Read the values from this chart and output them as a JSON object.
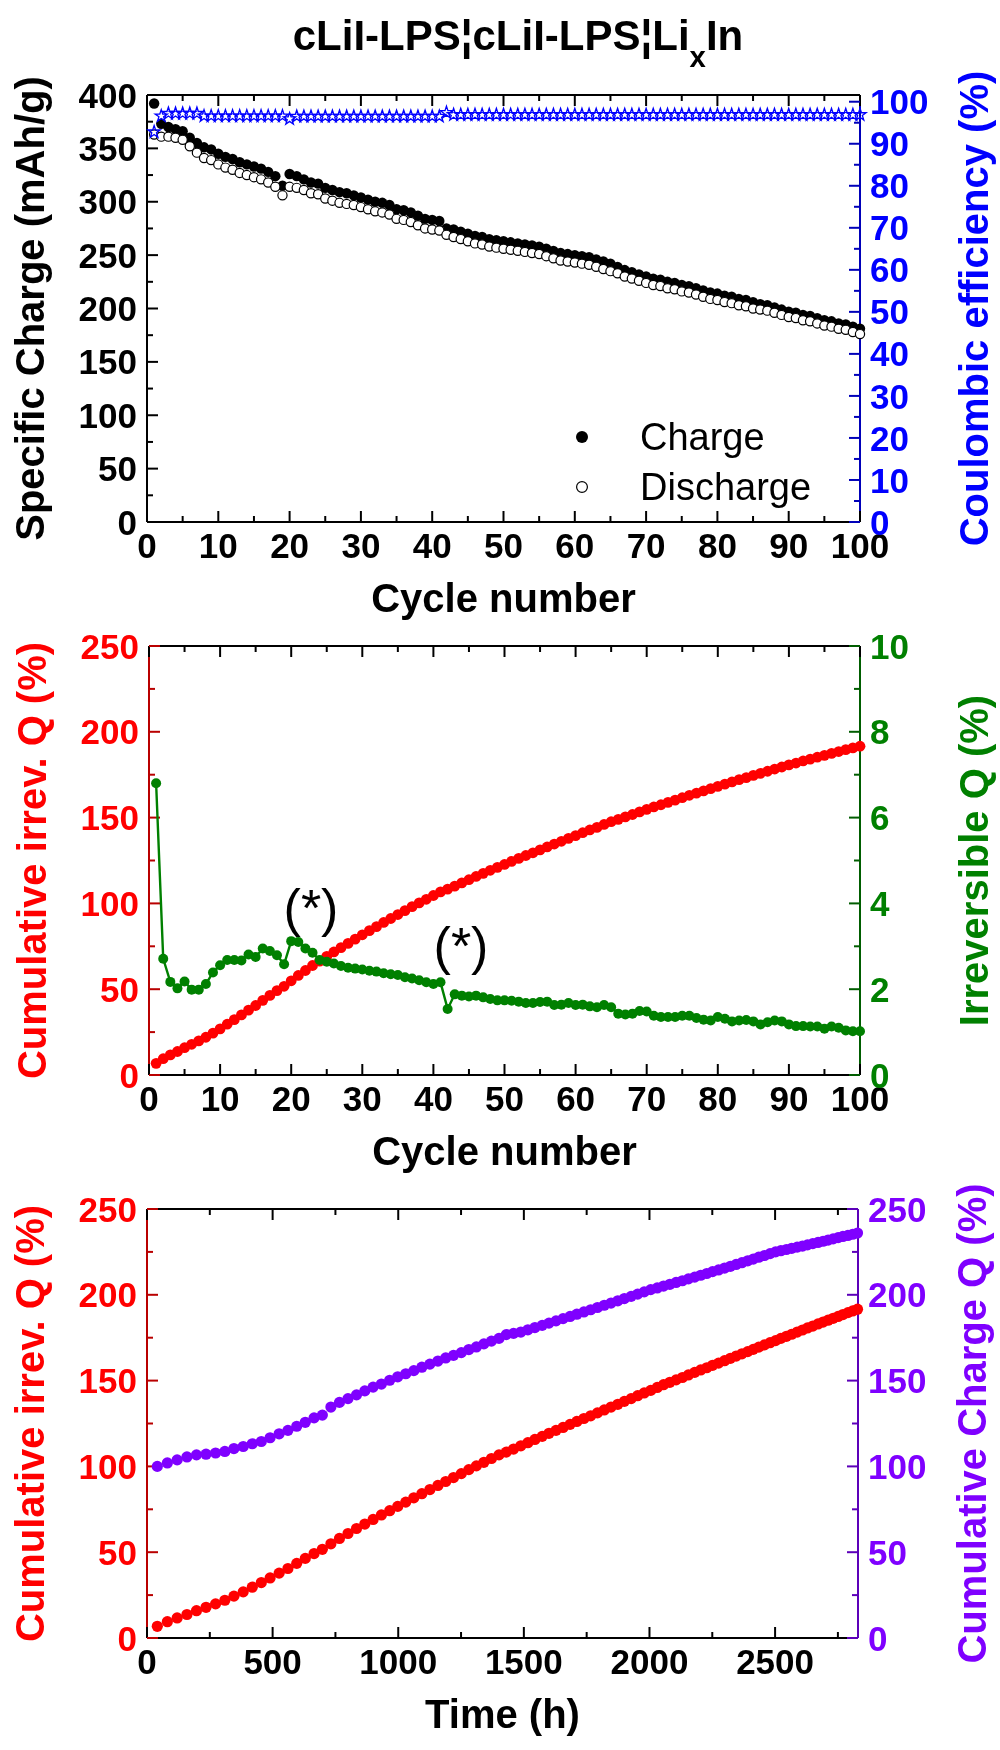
{
  "chart_data": [
    {
      "type": "scatter",
      "title": "cLiI-LPS¦cLiI-LPS¦Li$_{x}$In",
      "xlabel": "Cycle number",
      "ylabel": "Specific Charge (mAh/g)",
      "y2label": "Coulombic efficiency (%)",
      "x": [
        1,
        2,
        3,
        4,
        5,
        6,
        7,
        8,
        9,
        10,
        11,
        12,
        13,
        14,
        15,
        16,
        17,
        18,
        19,
        20,
        21,
        22,
        23,
        24,
        25,
        26,
        27,
        28,
        29,
        30,
        31,
        32,
        33,
        34,
        35,
        36,
        37,
        38,
        39,
        40,
        41,
        42,
        43,
        44,
        45,
        46,
        47,
        48,
        49,
        50,
        51,
        52,
        53,
        54,
        55,
        56,
        57,
        58,
        59,
        60,
        61,
        62,
        63,
        64,
        65,
        66,
        67,
        68,
        69,
        70,
        71,
        72,
        73,
        74,
        75,
        76,
        77,
        78,
        79,
        80,
        81,
        82,
        83,
        84,
        85,
        86,
        87,
        88,
        89,
        90,
        91,
        92,
        93,
        94,
        95,
        96,
        97,
        98,
        99,
        100
      ],
      "xlim": [
        0,
        100
      ],
      "xticks": [
        0,
        {
          "value": 5,
          "label": null
        },
        10,
        {
          "value": 15,
          "label": null
        },
        20,
        {
          "value": 25,
          "label": null
        },
        30,
        {
          "value": 35,
          "label": null
        },
        40,
        {
          "value": 45,
          "label": null
        },
        50,
        {
          "value": 55,
          "label": null
        },
        60,
        {
          "value": 65,
          "label": null
        },
        70,
        {
          "value": 75,
          "label": null
        },
        80,
        {
          "value": 85,
          "label": null
        },
        90,
        {
          "value": 95,
          "label": null
        },
        100
      ],
      "ylim": [
        0,
        400
      ],
      "yticks": [
        0,
        {
          "value": 25,
          "label": null
        },
        50,
        {
          "value": 75,
          "label": null
        },
        100,
        {
          "value": 125,
          "label": null
        },
        150,
        {
          "value": 175,
          "label": null
        },
        200,
        {
          "value": 225,
          "label": null
        },
        250,
        {
          "value": 275,
          "label": null
        },
        300,
        {
          "value": 325,
          "label": null
        },
        350,
        {
          "value": 375,
          "label": null
        },
        400
      ],
      "y2lim": [
        0,
        101.6
      ],
      "y2ticks": [
        0,
        {
          "value": 5,
          "label": null
        },
        10,
        {
          "value": 15,
          "label": null
        },
        20,
        {
          "value": 25,
          "label": null
        },
        30,
        {
          "value": 35,
          "label": null
        },
        40,
        {
          "value": 45,
          "label": null
        },
        50,
        {
          "value": 55,
          "label": null
        },
        60,
        {
          "value": 65,
          "label": null
        },
        70,
        {
          "value": 75,
          "label": null
        },
        80,
        {
          "value": 85,
          "label": null
        },
        90,
        {
          "value": 95,
          "label": null
        },
        100
      ],
      "legend": "bottom right",
      "series": [
        {
          "name": "Charge",
          "color": "#000000",
          "marker": "circle",
          "values": [
            392,
            373,
            370,
            368,
            366,
            360,
            355,
            351,
            349,
            345,
            342,
            340,
            337,
            335,
            333,
            331,
            328,
            324,
            315,
            326,
            324,
            321,
            318,
            317,
            313,
            311,
            309,
            308,
            306,
            304,
            302,
            300,
            299,
            297,
            293,
            292,
            290,
            287,
            284,
            283,
            282,
            275,
            274,
            272,
            270,
            268,
            267,
            265,
            264,
            263,
            262,
            261,
            260,
            259,
            258,
            256,
            254,
            252,
            251,
            250,
            249,
            248,
            246,
            244,
            242,
            239,
            236,
            234,
            232,
            230,
            228,
            227,
            225,
            224,
            222,
            221,
            219,
            217,
            215,
            214,
            212,
            211,
            209,
            208,
            206,
            204,
            203,
            201,
            199,
            197,
            196,
            194,
            193,
            191,
            189,
            188,
            186,
            185,
            183,
            181
          ]
        },
        {
          "name": "Discharge",
          "color": "#000000",
          "marker": "circle",
          "values": [
            363,
            361,
            361,
            360,
            358,
            352,
            346,
            341,
            339,
            335,
            332,
            330,
            327,
            325,
            323,
            321,
            318,
            314,
            306,
            314,
            313,
            311,
            308,
            307,
            303,
            301,
            299,
            298,
            297,
            295,
            293,
            291,
            290,
            288,
            284,
            283,
            281,
            278,
            275,
            274,
            273,
            269,
            267,
            265,
            263,
            261,
            260,
            258,
            257,
            256,
            255,
            254,
            253,
            252,
            251,
            249,
            247,
            245,
            244,
            243,
            242,
            241,
            239,
            237,
            235,
            233,
            230,
            228,
            226,
            224,
            222,
            221,
            219,
            218,
            216,
            215,
            213,
            211,
            209,
            208,
            206,
            205,
            203,
            202,
            200,
            199,
            198,
            196,
            194,
            192,
            191,
            189,
            188,
            186,
            184,
            183,
            181,
            180,
            178,
            176
          ]
        },
        {
          "color": "#0000ff",
          "marker": "star",
          "axis": "y2",
          "values": [
            92.8,
            96.6,
            97.2,
            97.2,
            97.2,
            97.2,
            97.2,
            96.6,
            96.6,
            96.6,
            96.6,
            96.6,
            96.6,
            96.6,
            96.6,
            96.6,
            96.6,
            96.6,
            96.6,
            95.9,
            96.5,
            96.5,
            96.5,
            96.5,
            96.5,
            96.5,
            96.5,
            96.5,
            96.5,
            96.5,
            96.5,
            96.5,
            96.5,
            96.5,
            96.5,
            96.5,
            96.5,
            96.5,
            96.5,
            96.5,
            96.5,
            97.4,
            96.9,
            96.9,
            96.9,
            96.9,
            96.9,
            96.9,
            96.9,
            96.9,
            96.9,
            96.9,
            96.9,
            96.9,
            96.9,
            96.9,
            96.9,
            96.9,
            96.9,
            96.9,
            96.9,
            96.9,
            96.9,
            96.9,
            96.9,
            96.9,
            96.9,
            96.9,
            96.9,
            96.9,
            96.9,
            96.9,
            96.9,
            96.9,
            96.9,
            96.9,
            96.9,
            96.9,
            96.9,
            96.9,
            96.9,
            96.9,
            96.9,
            96.9,
            96.9,
            96.9,
            96.9,
            96.9,
            96.9,
            96.9,
            96.9,
            96.9,
            96.9,
            96.9,
            96.9,
            96.9,
            96.9,
            96.9,
            96.9,
            96.9
          ]
        }
      ]
    },
    {
      "type": "scatter",
      "xlabel": "Cycle number",
      "ylabel": "Cumulative irrev. Q (%)",
      "y2label": "Irreversible Q (%)",
      "x": [
        1,
        2,
        3,
        4,
        5,
        6,
        7,
        8,
        9,
        10,
        11,
        12,
        13,
        14,
        15,
        16,
        17,
        18,
        19,
        20,
        21,
        22,
        23,
        24,
        25,
        26,
        27,
        28,
        29,
        30,
        31,
        32,
        33,
        34,
        35,
        36,
        37,
        38,
        39,
        40,
        41,
        42,
        43,
        44,
        45,
        46,
        47,
        48,
        49,
        50,
        51,
        52,
        53,
        54,
        55,
        56,
        57,
        58,
        59,
        60,
        61,
        62,
        63,
        64,
        65,
        66,
        67,
        68,
        69,
        70,
        71,
        72,
        73,
        74,
        75,
        76,
        77,
        78,
        79,
        80,
        81,
        82,
        83,
        84,
        85,
        86,
        87,
        88,
        89,
        90,
        91,
        92,
        93,
        94,
        95,
        96,
        97,
        98,
        99,
        100
      ],
      "xlim": [
        0,
        100
      ],
      "xticks": [
        0,
        {
          "value": 5,
          "label": null
        },
        10,
        {
          "value": 15,
          "label": null
        },
        20,
        {
          "value": 25,
          "label": null
        },
        30,
        {
          "value": 35,
          "label": null
        },
        40,
        {
          "value": 45,
          "label": null
        },
        50,
        {
          "value": 55,
          "label": null
        },
        60,
        {
          "value": 65,
          "label": null
        },
        70,
        {
          "value": 75,
          "label": null
        },
        80,
        {
          "value": 85,
          "label": null
        },
        90,
        {
          "value": 95,
          "label": null
        },
        100
      ],
      "ylim": [
        0,
        250
      ],
      "yticks": [
        0,
        {
          "value": 25,
          "label": null
        },
        50,
        {
          "value": 75,
          "label": null
        },
        100,
        {
          "value": 125,
          "label": null
        },
        150,
        {
          "value": 175,
          "label": null
        },
        200,
        {
          "value": 225,
          "label": null
        },
        250
      ],
      "y2lim": [
        0,
        10
      ],
      "y2ticks": [
        0,
        {
          "value": 1,
          "label": null
        },
        2,
        {
          "value": 3,
          "label": null
        },
        4,
        {
          "value": 5,
          "label": null
        },
        6,
        {
          "value": 7,
          "label": null
        },
        8,
        {
          "value": 9,
          "label": null
        },
        10
      ],
      "annotations": [
        "(*)",
        "(*)"
      ],
      "series": [
        {
          "color": "#ff0000",
          "marker": "circle",
          "values": [
            6.8,
            9.5,
            11.7,
            13.7,
            15.9,
            17.9,
            19.9,
            22.0,
            24.4,
            26.9,
            29.6,
            32.3,
            35.0,
            37.8,
            40.5,
            43.5,
            46.4,
            49.2,
            51.7,
            54.9,
            58.0,
            60.9,
            63.8,
            66.4,
            69.1,
            71.7,
            74.2,
            76.7,
            79.2,
            81.7,
            84.1,
            86.5,
            88.9,
            91.2,
            93.5,
            95.8,
            98.1,
            100.3,
            102.4,
            104.6,
            106.7,
            108.3,
            110.1,
            112.0,
            113.8,
            115.7,
            117.5,
            119.3,
            121.0,
            122.7,
            124.5,
            126.2,
            127.9,
            129.5,
            131.2,
            132.9,
            134.6,
            136.2,
            137.9,
            139.5,
            141.2,
            142.8,
            144.3,
            146.0,
            147.6,
            149.0,
            150.4,
            151.8,
            153.3,
            154.8,
            156.2,
            157.5,
            158.9,
            160.2,
            161.6,
            163.0,
            164.3,
            165.6,
            166.9,
            168.2,
            169.5,
            170.8,
            172.1,
            173.3,
            174.6,
            175.8,
            177.0,
            178.3,
            179.5,
            180.7,
            181.8,
            183.0,
            184.1,
            185.2,
            186.3,
            187.4,
            188.5,
            189.6,
            190.6,
            191.6
          ]
        },
        {
          "type": "line",
          "color": "#008000",
          "marker": "circle",
          "line_style": "solid",
          "axis": "y2",
          "values": [
            6.8,
            2.71,
            2.17,
            2.02,
            2.18,
            1.99,
            1.99,
            2.12,
            2.39,
            2.56,
            2.68,
            2.68,
            2.67,
            2.81,
            2.75,
            2.95,
            2.89,
            2.79,
            2.58,
            3.12,
            3.1,
            2.95,
            2.85,
            2.68,
            2.64,
            2.6,
            2.54,
            2.5,
            2.48,
            2.46,
            2.43,
            2.41,
            2.37,
            2.35,
            2.33,
            2.28,
            2.25,
            2.21,
            2.16,
            2.12,
            2.16,
            1.54,
            1.88,
            1.85,
            1.83,
            1.85,
            1.81,
            1.77,
            1.74,
            1.74,
            1.73,
            1.71,
            1.68,
            1.68,
            1.7,
            1.71,
            1.63,
            1.64,
            1.68,
            1.63,
            1.64,
            1.6,
            1.58,
            1.63,
            1.58,
            1.43,
            1.41,
            1.43,
            1.49,
            1.48,
            1.38,
            1.35,
            1.35,
            1.35,
            1.38,
            1.38,
            1.33,
            1.29,
            1.27,
            1.35,
            1.31,
            1.25,
            1.27,
            1.28,
            1.25,
            1.18,
            1.23,
            1.27,
            1.25,
            1.18,
            1.14,
            1.14,
            1.13,
            1.13,
            1.08,
            1.13,
            1.1,
            1.04,
            1.02,
            1.02
          ]
        }
      ]
    },
    {
      "type": "scatter",
      "xlabel": "Time (h)",
      "ylabel": "Cumulative irrev. Q (%)",
      "y2label": "Cumulative Charge Q (%)",
      "x": [
        41,
        81,
        120,
        159,
        197,
        235,
        273,
        310,
        346,
        383,
        419,
        455,
        490,
        526,
        561,
        596,
        630,
        665,
        698,
        732,
        766,
        800,
        834,
        867,
        900,
        933,
        966,
        998,
        1030,
        1062,
        1094,
        1126,
        1158,
        1189,
        1220,
        1251,
        1281,
        1311,
        1341,
        1371,
        1401,
        1430,
        1459,
        1488,
        1516,
        1544,
        1573,
        1600,
        1628,
        1656,
        1684,
        1711,
        1739,
        1766,
        1793,
        1820,
        1847,
        1874,
        1900,
        1927,
        1953,
        1979,
        2005,
        2031,
        2056,
        2081,
        2106,
        2131,
        2155,
        2180,
        2204,
        2228,
        2251,
        2275,
        2299,
        2322,
        2345,
        2368,
        2391,
        2413,
        2435,
        2458,
        2480,
        2502,
        2523,
        2545,
        2566,
        2588,
        2609,
        2629,
        2650,
        2671,
        2691,
        2711,
        2731,
        2751,
        2770,
        2790,
        2809,
        2828
      ],
      "xlim": [
        0,
        2830
      ],
      "xticks": [
        0,
        {
          "value": 250,
          "label": null
        },
        500,
        {
          "value": 750,
          "label": null
        },
        1000,
        {
          "value": 1250,
          "label": null
        },
        1500,
        {
          "value": 1750,
          "label": null
        },
        2000,
        {
          "value": 2250,
          "label": null
        },
        2500,
        {
          "value": 2750,
          "label": null
        }
      ],
      "ylim": [
        0,
        250
      ],
      "yticks": [
        0,
        {
          "value": 25,
          "label": null
        },
        50,
        {
          "value": 75,
          "label": null
        },
        100,
        {
          "value": 125,
          "label": null
        },
        150,
        {
          "value": 175,
          "label": null
        },
        200,
        {
          "value": 225,
          "label": null
        },
        250
      ],
      "y2lim": [
        0,
        250
      ],
      "y2ticks": [
        0,
        {
          "value": 25,
          "label": null
        },
        50,
        {
          "value": 75,
          "label": null
        },
        100,
        {
          "value": 125,
          "label": null
        },
        150,
        {
          "value": 175,
          "label": null
        },
        200,
        {
          "value": 225,
          "label": null
        },
        250
      ],
      "series": [
        {
          "color": "#ff0000",
          "marker": "circle",
          "values": [
            6.8,
            9.5,
            11.7,
            13.7,
            15.9,
            17.9,
            19.9,
            22.0,
            24.4,
            26.9,
            29.6,
            32.3,
            35.0,
            37.8,
            40.5,
            43.5,
            46.4,
            49.2,
            51.7,
            54.9,
            58.0,
            60.9,
            63.8,
            66.4,
            69.1,
            71.7,
            74.2,
            76.7,
            79.2,
            81.7,
            84.1,
            86.5,
            88.9,
            91.2,
            93.5,
            95.8,
            98.1,
            100.3,
            102.4,
            104.6,
            106.7,
            108.3,
            110.1,
            112.0,
            113.8,
            115.7,
            117.5,
            119.3,
            121.0,
            122.7,
            124.5,
            126.2,
            127.9,
            129.5,
            131.2,
            132.9,
            134.6,
            136.2,
            137.9,
            139.5,
            141.2,
            142.8,
            144.3,
            146.0,
            147.6,
            149.0,
            150.4,
            151.8,
            153.3,
            154.8,
            156.2,
            157.5,
            158.9,
            160.2,
            161.6,
            163.0,
            164.3,
            165.6,
            166.9,
            168.2,
            169.5,
            170.8,
            172.1,
            173.3,
            174.6,
            175.8,
            177.0,
            178.3,
            179.5,
            180.7,
            181.8,
            183.0,
            184.1,
            185.2,
            186.3,
            187.4,
            188.5,
            189.6,
            190.6,
            191.6
          ]
        },
        {
          "color": "#7f00ff",
          "marker": "circle",
          "axis": "y2",
          "values": [
            100.0,
            102.0,
            103.8,
            105.5,
            106.7,
            107.1,
            107.8,
            108.7,
            110.4,
            111.6,
            113.2,
            114.5,
            116.7,
            119.0,
            121.0,
            123.4,
            125.7,
            128.3,
            129.9,
            134.6,
            137.3,
            139.5,
            141.7,
            144.0,
            146.2,
            148.0,
            150.2,
            152.2,
            154.0,
            155.8,
            157.8,
            159.6,
            161.4,
            163.2,
            164.7,
            166.3,
            168.1,
            169.6,
            171.4,
            173.0,
            174.6,
            176.8,
            177.5,
            178.3,
            179.6,
            180.9,
            182.2,
            183.5,
            184.8,
            186.1,
            187.4,
            188.7,
            190.0,
            191.3,
            192.6,
            193.9,
            195.2,
            196.5,
            197.8,
            199.1,
            200.4,
            201.7,
            203.0,
            204.0,
            205.1,
            206.1,
            207.2,
            208.2,
            209.3,
            210.3,
            211.4,
            212.4,
            213.5,
            214.5,
            215.6,
            216.6,
            217.7,
            218.7,
            219.8,
            220.8,
            221.9,
            222.9,
            224.0,
            225.0,
            225.7,
            226.4,
            227.1,
            227.8,
            228.4,
            229.1,
            229.8,
            230.5,
            231.2,
            231.9,
            232.6,
            233.3,
            234.0,
            234.6,
            235.3,
            236.0
          ]
        }
      ]
    }
  ]
}
